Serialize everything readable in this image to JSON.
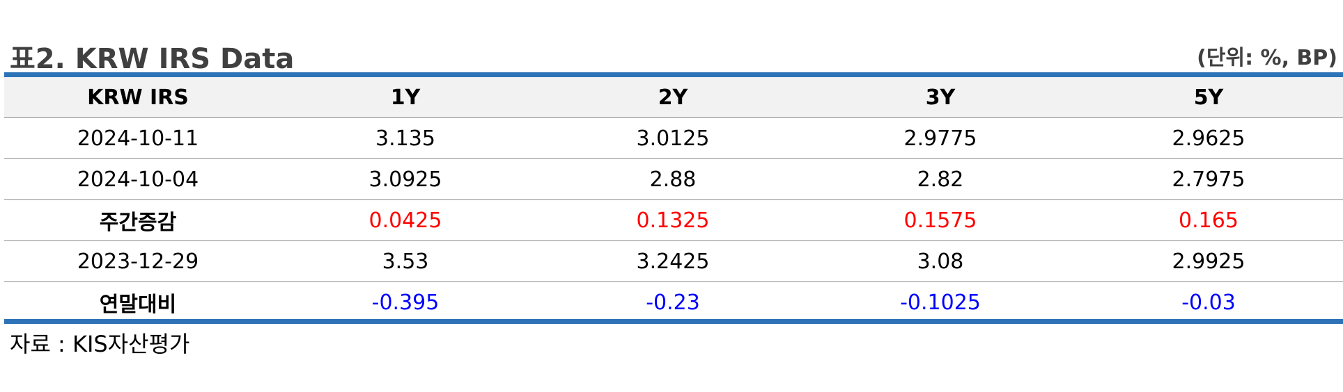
{
  "title": "표2. KRW IRS Data",
  "unit": "(단위: %, BP)",
  "table": {
    "headers": [
      "KRW IRS",
      "1Y",
      "2Y",
      "3Y",
      "5Y"
    ],
    "rows": [
      {
        "label": "2024-10-11",
        "values": [
          "3.135",
          "3.0125",
          "2.9775",
          "2.9625"
        ],
        "kind": "data"
      },
      {
        "label": "2024-10-04",
        "values": [
          "3.0925",
          "2.88",
          "2.82",
          "2.7975"
        ],
        "kind": "data"
      },
      {
        "label": "주간증감",
        "values": [
          "0.0425",
          "0.1325",
          "0.1575",
          "0.165"
        ],
        "kind": "change-positive"
      },
      {
        "label": "2023-12-29",
        "values": [
          "3.53",
          "3.2425",
          "3.08",
          "2.9925"
        ],
        "kind": "data"
      },
      {
        "label": "연말대비",
        "values": [
          "-0.395",
          "-0.23",
          "-0.1025",
          "-0.03"
        ],
        "kind": "change-negative"
      }
    ]
  },
  "source": "자료 : KIS자산평가",
  "colors": {
    "accent_rule": "#2e73b8",
    "header_bg": "#f2f2f2",
    "positive": "#ff0000",
    "negative": "#0000ff",
    "title_text": "#404040"
  }
}
